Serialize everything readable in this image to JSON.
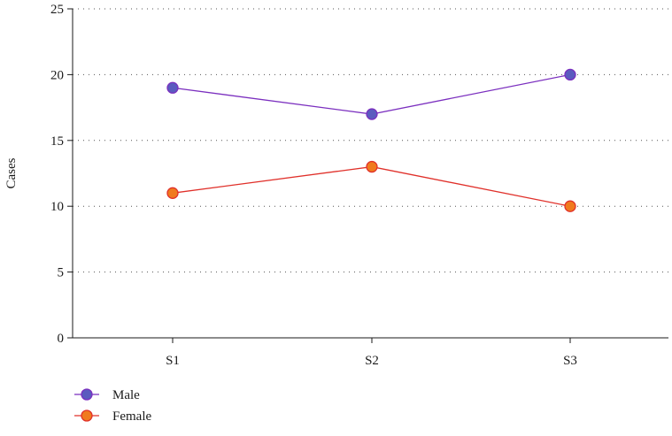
{
  "chart_data": {
    "type": "line",
    "title": "",
    "xlabel": "",
    "ylabel": "Cases",
    "categories": [
      "S1",
      "S2",
      "S3"
    ],
    "ylim": [
      0,
      25
    ],
    "yticks": [
      0,
      5,
      10,
      15,
      20,
      25
    ],
    "grid": true,
    "legend_position": "bottom-left",
    "series": [
      {
        "name": "Male",
        "values": [
          19,
          17,
          20
        ],
        "line_color": "#7b2fbf",
        "marker_color": "#5b5bbf"
      },
      {
        "name": "Female",
        "values": [
          11,
          13,
          10
        ],
        "line_color": "#e0302a",
        "marker_color": "#f07a1e"
      }
    ]
  }
}
